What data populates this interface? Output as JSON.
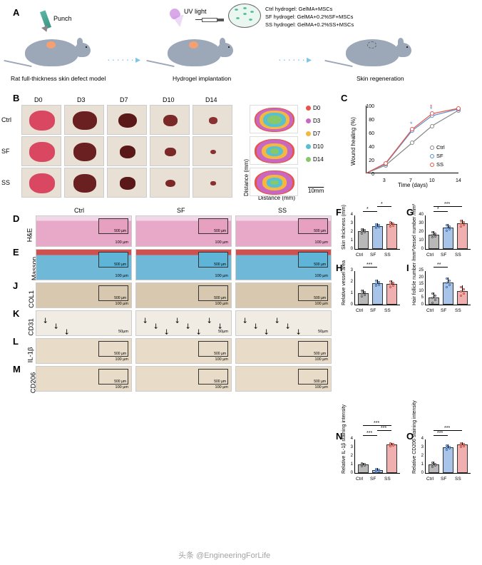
{
  "labels": {
    "A": "A",
    "B": "B",
    "C": "C",
    "D": "D",
    "E": "E",
    "F": "F",
    "G": "G",
    "H": "H",
    "I": "I",
    "J": "J",
    "K": "K",
    "L": "L",
    "M": "M",
    "N": "N",
    "O": "O"
  },
  "panelA": {
    "punch_label": "Punch",
    "uv_label": "UV light",
    "caption1": "Rat full-thickness skin defect model",
    "caption2": "Hydrogel implantation",
    "caption3": "Skin regeneration",
    "legend1": "Ctrl hydrogel: GelMA+MSCs",
    "legend2": "SF hydrogel: GelMA+0.2%SF+MSCs",
    "legend3": "SS hydrogel: GelMA+0.2%SS+MSCs",
    "rat_color": "#9ca8b8",
    "wound_color": "#f4a070"
  },
  "panelB": {
    "cols": [
      "D0",
      "D3",
      "D7",
      "D10",
      "D14"
    ],
    "rows": [
      "Ctrl",
      "SF",
      "SS"
    ],
    "ruler_mm": "10mm",
    "x_axis": "Distance (mm)",
    "y_axis": "Distance (mm)",
    "wound_colors_by_day": {
      "D0": "#d94860",
      "D3": "#6a2020",
      "D7": "#5a1818",
      "D10": "#7a2828",
      "D14": "#8a3030"
    },
    "wound_sizes_pct": {
      "Ctrl": [
        100,
        85,
        55,
        32,
        12
      ],
      "SF": [
        100,
        82,
        40,
        18,
        5
      ],
      "SS": [
        100,
        80,
        38,
        15,
        4
      ]
    },
    "boundary_colors": {
      "D0": "#e8544a",
      "D3": "#c968c0",
      "D7": "#f4b840",
      "D10": "#58c0d0",
      "D14": "#86c86a"
    },
    "boundary_legend": [
      {
        "label": "D0",
        "color": "#e8544a"
      },
      {
        "label": "D3",
        "color": "#c968c0"
      },
      {
        "label": "D7",
        "color": "#f4b840"
      },
      {
        "label": "D10",
        "color": "#58c0d0"
      },
      {
        "label": "D14",
        "color": "#86c86a"
      }
    ]
  },
  "panelC": {
    "ylabel": "Wound healing (%)",
    "xlabel": "Time (days)",
    "xticks": [
      3,
      7,
      10,
      14
    ],
    "yticks": [
      0,
      20,
      40,
      60,
      80,
      100
    ],
    "ylim": [
      0,
      100
    ],
    "series": {
      "Ctrl": {
        "color": "#888888",
        "values": [
          0,
          12,
          45,
          70,
          93
        ]
      },
      "SF": {
        "color": "#5a8dc9",
        "values": [
          0,
          14,
          63,
          85,
          95
        ]
      },
      "SS": {
        "color": "#e8544a",
        "values": [
          0,
          15,
          65,
          88,
          96
        ]
      }
    },
    "legend_order": [
      "Ctrl",
      "SF",
      "SS"
    ],
    "sig_marks": [
      {
        "x": 7,
        "group": "SF",
        "symbol": "*"
      },
      {
        "x": 10,
        "group": "SF",
        "symbol": "*"
      },
      {
        "x": 10,
        "group": "SS",
        "symbol": "*"
      }
    ]
  },
  "histology": {
    "columns": [
      "Ctrl",
      "SF",
      "SS"
    ],
    "rows": [
      {
        "id": "D",
        "label": "H&E",
        "bg": "#e8a8c8",
        "inset_bg": "#e8a0c0",
        "scale": "100 µm",
        "inset_scale": "500 µm",
        "height": 44
      },
      {
        "id": "E",
        "label": "Masson",
        "bg": "#6fb8d8",
        "inset_bg": "#5fb5d8",
        "scale": "100 µm",
        "inset_scale": "500 µm",
        "height": 44
      },
      {
        "id": "J",
        "label": "COL1",
        "bg": "#d8c8b0",
        "inset_bg": "#d8c8b0",
        "scale": "100 µm",
        "inset_scale": "500 µm",
        "height": 36
      },
      {
        "id": "K",
        "label": "CD31",
        "bg": "#f0ece4",
        "inset_bg": "",
        "scale": "50µm",
        "inset_scale": "",
        "height": 36,
        "arrows": true
      },
      {
        "id": "L",
        "label": "IL-1β",
        "bg": "#e8dcc8",
        "inset_bg": "#e8dcc8",
        "scale": "100 µm",
        "inset_scale": "500 µm",
        "height": 36
      },
      {
        "id": "M",
        "label": "CD206",
        "bg": "#e8dcc8",
        "inset_bg": "#e8dcc8",
        "scale": "100 µm",
        "inset_scale": "500 µm",
        "height": 36
      }
    ]
  },
  "barcharts": {
    "groups": [
      "Ctrl",
      "SF",
      "SS"
    ],
    "colors": {
      "Ctrl": "#b8b8b8",
      "SF": "#a8c4e8",
      "SS": "#f0b0b0"
    },
    "charts": {
      "F": {
        "ylabel": "Skin thickness (mm)",
        "ymax": 4,
        "ytick": 1,
        "values": {
          "Ctrl": 2.1,
          "SF": 2.7,
          "SS": 2.9
        },
        "err": 0.3,
        "sig": [
          {
            "a": "Ctrl",
            "b": "SF",
            "s": "*"
          },
          {
            "a": "SF",
            "b": "SS",
            "s": "*"
          }
        ]
      },
      "G": {
        "ylabel": "Vessel number /mm²",
        "ymax": 40,
        "ytick": 10,
        "values": {
          "Ctrl": 17,
          "SF": 25,
          "SS": 30
        },
        "err": 4,
        "sig": [
          {
            "a": "Ctrl",
            "b": "SF",
            "s": "*"
          },
          {
            "a": "Ctrl",
            "b": "SS",
            "s": "***"
          }
        ]
      },
      "H": {
        "ylabel": "Relative vessel area",
        "ymax": 3,
        "ytick": 1,
        "values": {
          "Ctrl": 1.0,
          "SF": 1.9,
          "SS": 1.8
        },
        "err": 0.3,
        "sig": [
          {
            "a": "Ctrl",
            "b": "SF",
            "s": "***"
          }
        ]
      },
      "I": {
        "ylabel": "Hair follicle number /mm²",
        "ymax": 25,
        "ytick": 5,
        "values": {
          "Ctrl": 5,
          "SF": 16,
          "SS": 10
        },
        "err": 4,
        "sig": [
          {
            "a": "Ctrl",
            "b": "SF",
            "s": "**"
          }
        ]
      },
      "N": {
        "ylabel": "Relative IL-1β staining intensity",
        "ymax": 4,
        "ytick": 1,
        "values": {
          "Ctrl": 1.0,
          "SF": 0.35,
          "SS": 3.3
        },
        "err": 0.2,
        "sig": [
          {
            "a": "Ctrl",
            "b": "SF",
            "s": "***"
          },
          {
            "a": "SF",
            "b": "SS",
            "s": "***"
          },
          {
            "a": "Ctrl",
            "b": "SS",
            "s": "***"
          }
        ]
      },
      "O": {
        "ylabel": "Relative CD206 staining intensity",
        "ymax": 4,
        "ytick": 1,
        "values": {
          "Ctrl": 1.0,
          "SF": 3.0,
          "SS": 3.3
        },
        "err": 0.3,
        "sig": [
          {
            "a": "Ctrl",
            "b": "SF",
            "s": "***"
          },
          {
            "a": "Ctrl",
            "b": "SS",
            "s": "***"
          }
        ]
      }
    }
  },
  "watermark": "头条 @EngineeringForLife"
}
